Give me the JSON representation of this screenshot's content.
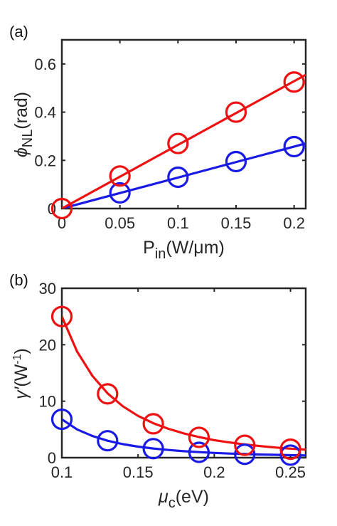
{
  "chart_data": [
    {
      "panel_label": "(a)",
      "type": "line",
      "xlabel": {
        "main": "P",
        "sub": "in",
        "rest": "(W/μm)"
      },
      "ylabel": {
        "main": "ϕ",
        "sub": "NL",
        "rest": "(rad)"
      },
      "xlim": [
        0,
        0.21
      ],
      "ylim": [
        0,
        0.7
      ],
      "xticks": [
        0,
        0.05,
        0.1,
        0.15,
        0.2
      ],
      "xtick_labels": [
        "0",
        "0.05",
        "0.1",
        "0.15",
        "0.2"
      ],
      "yticks": [
        0,
        0.2,
        0.4,
        0.6
      ],
      "ytick_labels": [
        "0",
        "0.2",
        "0.4",
        "0.6"
      ],
      "grid": false,
      "series": [
        {
          "color": "#ee1111",
          "line": {
            "x": [
              0,
              0.21
            ],
            "y": [
              0,
              0.555
            ]
          },
          "markers": {
            "x": [
              0,
              0.05,
              0.1,
              0.15,
              0.2
            ],
            "y": [
              0,
              0.135,
              0.27,
              0.4,
              0.525
            ]
          }
        },
        {
          "color": "#1a1ae6",
          "line": {
            "x": [
              0,
              0.21
            ],
            "y": [
              0,
              0.27
            ]
          },
          "markers": {
            "x": [
              0.05,
              0.1,
              0.15,
              0.2
            ],
            "y": [
              0.065,
              0.13,
              0.195,
              0.257
            ]
          }
        }
      ]
    },
    {
      "panel_label": "(b)",
      "type": "line",
      "xlabel": {
        "main": "μ",
        "sub": "c",
        "rest": "(eV)"
      },
      "ylabel": {
        "main": "γ′",
        "sub": "",
        "rest": "(W",
        "sup": "-1",
        "close": ")"
      },
      "xlim": [
        0.1,
        0.26
      ],
      "ylim": [
        0,
        30
      ],
      "xticks": [
        0.1,
        0.15,
        0.2,
        0.25
      ],
      "xtick_labels": [
        "0.1",
        "0.15",
        "0.2",
        "0.25"
      ],
      "yticks": [
        0,
        10,
        20,
        30
      ],
      "ytick_labels": [
        "0",
        "10",
        "20",
        "30"
      ],
      "grid": false,
      "series": [
        {
          "color": "#ee1111",
          "line": {
            "x": [
              0.1,
              0.11,
              0.12,
              0.13,
              0.14,
              0.15,
              0.16,
              0.17,
              0.18,
              0.19,
              0.2,
              0.21,
              0.22,
              0.23,
              0.24,
              0.25,
              0.26
            ],
            "y": [
              25.0,
              18.8,
              14.5,
              11.4,
              9.1,
              7.4,
              6.1,
              5.1,
              4.3,
              3.65,
              3.1,
              2.7,
              2.35,
              2.05,
              1.8,
              1.6,
              1.42
            ]
          },
          "markers": {
            "x": [
              0.1,
              0.13,
              0.16,
              0.19,
              0.22,
              0.25
            ],
            "y": [
              25.0,
              11.3,
              6.0,
              3.6,
              2.2,
              1.5
            ]
          }
        },
        {
          "color": "#1a1ae6",
          "line": {
            "x": [
              0.1,
              0.11,
              0.12,
              0.13,
              0.14,
              0.15,
              0.16,
              0.17,
              0.18,
              0.19,
              0.2,
              0.21,
              0.22,
              0.23,
              0.24,
              0.25,
              0.26
            ],
            "y": [
              6.8,
              5.0,
              3.85,
              3.0,
              2.4,
              1.95,
              1.62,
              1.36,
              1.15,
              0.98,
              0.84,
              0.73,
              0.64,
              0.56,
              0.5,
              0.44,
              0.4
            ]
          },
          "markers": {
            "x": [
              0.1,
              0.13,
              0.16,
              0.19,
              0.22,
              0.25
            ],
            "y": [
              6.8,
              3.0,
              1.6,
              0.95,
              0.6,
              0.45
            ]
          }
        }
      ]
    }
  ]
}
